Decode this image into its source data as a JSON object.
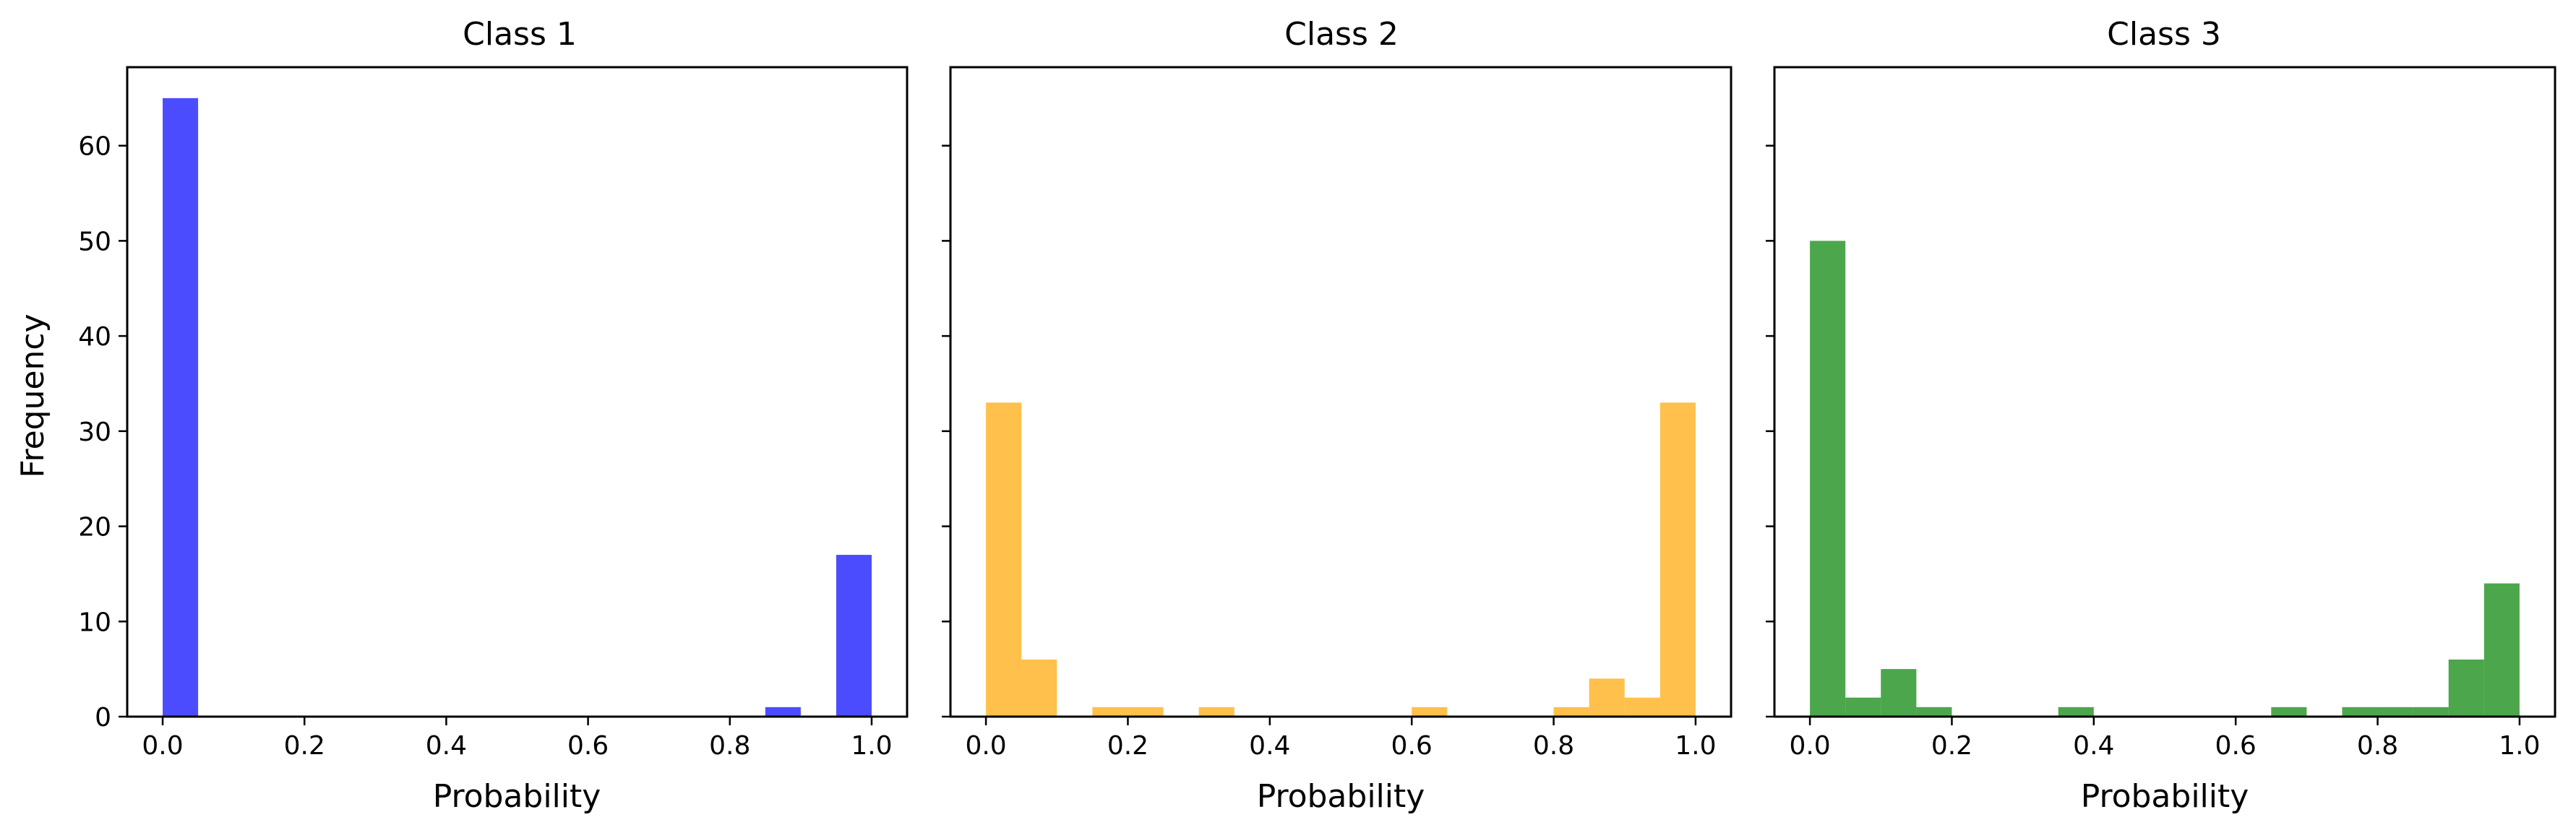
{
  "chart_data": [
    {
      "type": "bar",
      "title": "Class 1",
      "xlabel": "Probability",
      "ylabel": "Frequency",
      "color": "#0000ff",
      "opacity": 0.7,
      "xlim": [
        -0.05,
        1.05
      ],
      "ylim": [
        0,
        68.25
      ],
      "bin_width": 0.05,
      "bins": [
        0.0,
        0.05,
        0.1,
        0.15,
        0.2,
        0.25,
        0.3,
        0.35,
        0.4,
        0.45,
        0.5,
        0.55,
        0.6,
        0.65,
        0.7,
        0.75,
        0.8,
        0.85,
        0.9,
        0.95
      ],
      "values": [
        65,
        0,
        0,
        0,
        0,
        0,
        0,
        0,
        0,
        0,
        0,
        0,
        0,
        0,
        0,
        0,
        0,
        1,
        0,
        17
      ],
      "xticks": [
        "0.0",
        "0.2",
        "0.4",
        "0.6",
        "0.8",
        "1.0"
      ],
      "yticks": [
        "0",
        "10",
        "20",
        "30",
        "40",
        "50",
        "60"
      ],
      "show_ytick_labels": true
    },
    {
      "type": "bar",
      "title": "Class 2",
      "xlabel": "Probability",
      "ylabel": "",
      "color": "#ffa500",
      "opacity": 0.7,
      "xlim": [
        -0.05,
        1.05
      ],
      "ylim": [
        0,
        68.25
      ],
      "bin_width": 0.05,
      "bins": [
        0.0,
        0.05,
        0.1,
        0.15,
        0.2,
        0.25,
        0.3,
        0.35,
        0.4,
        0.45,
        0.5,
        0.55,
        0.6,
        0.65,
        0.7,
        0.75,
        0.8,
        0.85,
        0.9,
        0.95
      ],
      "values": [
        33,
        6,
        0,
        1,
        1,
        0,
        1,
        0,
        0,
        0,
        0,
        0,
        1,
        0,
        0,
        0,
        1,
        4,
        2,
        33
      ],
      "xticks": [
        "0.0",
        "0.2",
        "0.4",
        "0.6",
        "0.8",
        "1.0"
      ],
      "yticks": [
        "0",
        "10",
        "20",
        "30",
        "40",
        "50",
        "60"
      ],
      "show_ytick_labels": false
    },
    {
      "type": "bar",
      "title": "Class 3",
      "xlabel": "Probability",
      "ylabel": "",
      "color": "#008000",
      "opacity": 0.7,
      "xlim": [
        -0.05,
        1.05
      ],
      "ylim": [
        0,
        68.25
      ],
      "bin_width": 0.05,
      "bins": [
        0.0,
        0.05,
        0.1,
        0.15,
        0.2,
        0.25,
        0.3,
        0.35,
        0.4,
        0.45,
        0.5,
        0.55,
        0.6,
        0.65,
        0.7,
        0.75,
        0.8,
        0.85,
        0.9,
        0.95
      ],
      "values": [
        50,
        2,
        5,
        1,
        0,
        0,
        0,
        1,
        0,
        0,
        0,
        0,
        0,
        1,
        0,
        1,
        1,
        1,
        6,
        14
      ],
      "xticks": [
        "0.0",
        "0.2",
        "0.4",
        "0.6",
        "0.8",
        "1.0"
      ],
      "yticks": [
        "0",
        "10",
        "20",
        "30",
        "40",
        "50",
        "60"
      ],
      "show_ytick_labels": false
    }
  ]
}
